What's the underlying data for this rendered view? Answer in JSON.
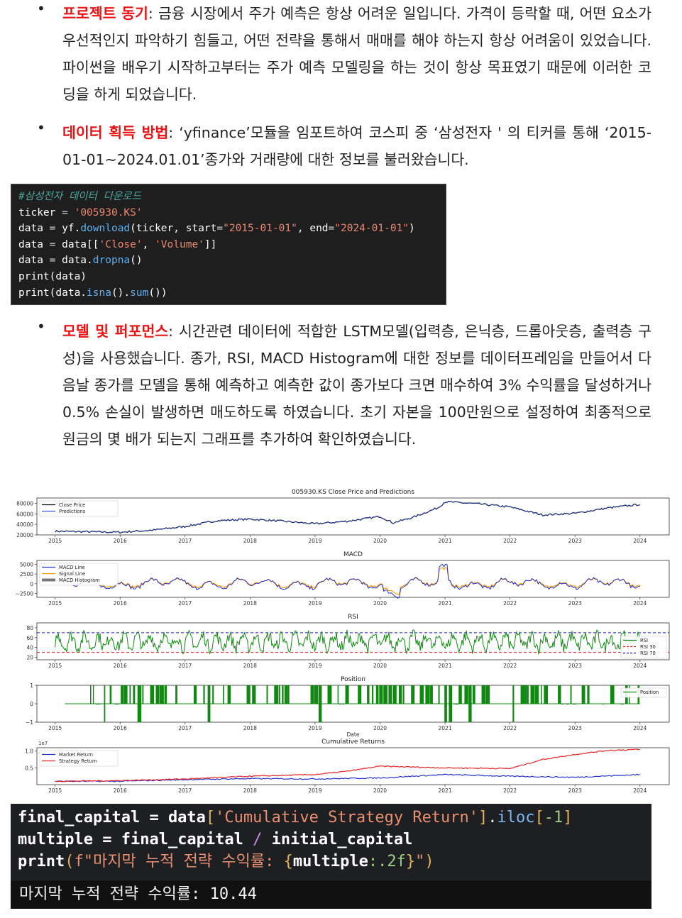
{
  "bullets": [
    {
      "heading": "프로젝트 동기",
      "text": ": 금융 시장에서 주가 예측은 항상 어려운 일입니다. 가격이 등락할 때, 어떤 요소가 우선적인지 파악하기 힘들고, 어떤 전략을 통해서 매매를 해야 하는지 항상 어려움이 있었습니다. 파이썬을 배우기 시작하고부터는 주가 예측 모델링을 하는 것이 항상 목표였기 때문에 이러한 코딩을 하게 되었습니다."
    },
    {
      "heading": "데이터 획득 방법",
      "text": ": ‘yfinance’모듈을 임포트하여 코스피 중 ‘삼성전자 ' 의 티커를 통해 ‘2015-01-01~2024.01.01’종가와 거래량에 대한 정보를 불러왔습니다."
    },
    {
      "heading": "모델 및 퍼포먼스",
      "text": ": 시간관련 데이터에 적합한 LSTM모델(입력층, 은닉층, 드롭아웃층, 출력층 구성)을 사용했습니다. 종가, RSI, MACD Histogram에 대한 정보를 데이터프레임을 만들어서 다음날 종가를 모델을 통해 예측하고 예측한 값이 종가보다 크면 매수하여 3% 수익률을 달성하거나 0.5% 손실이 발생하면 매도하도록 하였습니다. 초기 자본을 100만원으로 설정하여 최종적으로 원금의 몇 배가 되는지 그래프를 추가하여 확인하였습니다."
    }
  ],
  "code_block_1": {
    "comment": "#삼성전자 데이터 다운로드",
    "ticker_var": "ticker",
    "ticker_value": "'005930.KS'",
    "download_start": "\"2015-01-01\"",
    "download_end": "\"2024-01-01\"",
    "col_close": "'Close'",
    "col_volume": "'Volume'"
  },
  "chart_data": [
    {
      "type": "line",
      "title": "005930.KS Close Price and Predictions",
      "x_ticks": [
        "2015",
        "2016",
        "2017",
        "2018",
        "2019",
        "2020",
        "2021",
        "2022",
        "2023",
        "2024"
      ],
      "y_ticks": [
        "80000",
        "60000",
        "40000",
        "20000"
      ],
      "ylim": [
        20000,
        90000
      ],
      "legend": [
        "Close Price",
        "Predictions"
      ],
      "legend_position": "top-left",
      "colors": {
        "Close Price": "#000000",
        "Predictions": "#3355ee"
      },
      "series": [
        {
          "name": "Close Price",
          "x": [
            2015,
            2015.5,
            2016,
            2016.5,
            2017,
            2017.5,
            2018,
            2018.5,
            2019,
            2019.5,
            2020,
            2020.2,
            2020.5,
            2020.9,
            2021,
            2021.5,
            2022,
            2022.5,
            2023,
            2023.5,
            2024
          ],
          "values": [
            27000,
            26000,
            25000,
            29000,
            36000,
            47000,
            50000,
            46000,
            41000,
            46000,
            55000,
            43000,
            53000,
            72000,
            83000,
            79000,
            73000,
            58000,
            61000,
            71000,
            78000
          ]
        }
      ]
    },
    {
      "type": "line",
      "title": "MACD",
      "x_ticks": [
        "2015",
        "2016",
        "2017",
        "2018",
        "2019",
        "2020",
        "2021",
        "2022",
        "2023",
        "2024"
      ],
      "y_ticks": [
        "5000",
        "2500",
        "0",
        "−2500"
      ],
      "ylim": [
        -3500,
        6000
      ],
      "legend": [
        "MACD Line",
        "Signal Line",
        "MACD Histogram"
      ],
      "legend_position": "top-left",
      "colors": {
        "MACD Line": "#2233cc",
        "Signal Line": "#ff9900",
        "MACD Histogram": "#777777"
      }
    },
    {
      "type": "line",
      "title": "RSI",
      "x_ticks": [
        "2015",
        "2016",
        "2017",
        "2018",
        "2019",
        "2020",
        "2021",
        "2022",
        "2023",
        "2024"
      ],
      "y_ticks": [
        "80",
        "60",
        "40",
        "20"
      ],
      "ylim": [
        15,
        90
      ],
      "legend": [
        "RSI",
        "RSI 30",
        "RSI 70"
      ],
      "legend_position": "right",
      "colors": {
        "RSI": "#118811",
        "RSI 30": "#dd2222",
        "RSI 70": "#2222cc"
      }
    },
    {
      "type": "line",
      "title": "Position",
      "xlabel": "Date",
      "x_ticks": [
        "2015",
        "2016",
        "2017",
        "2018",
        "2019",
        "2020",
        "2021",
        "2022",
        "2023",
        "2024"
      ],
      "y_ticks": [
        "1",
        "0",
        "−1"
      ],
      "ylim": [
        -1,
        1
      ],
      "legend": [
        "Position"
      ],
      "legend_position": "top-right",
      "colors": {
        "Position": "#118811"
      }
    },
    {
      "type": "line",
      "title": "Cumulative Returns",
      "scale_label": "1e7",
      "x_ticks": [
        "2015",
        "2016",
        "2017",
        "2018",
        "2019",
        "2020",
        "2021",
        "2022",
        "2023",
        "2024"
      ],
      "y_ticks": [
        "1.0",
        "0.5"
      ],
      "ylim": [
        0,
        1.1
      ],
      "legend": [
        "Market Return",
        "Strategy Return"
      ],
      "legend_position": "top-left",
      "colors": {
        "Market Return": "#2233cc",
        "Strategy Return": "#ee2222"
      },
      "series": [
        {
          "name": "Market Return",
          "x": [
            2015,
            2016,
            2017,
            2018,
            2019,
            2020,
            2021,
            2022,
            2023,
            2024
          ],
          "values": [
            0.1,
            0.1,
            0.15,
            0.18,
            0.17,
            0.2,
            0.3,
            0.25,
            0.22,
            0.3
          ]
        },
        {
          "name": "Strategy Return",
          "x": [
            2015,
            2016,
            2017,
            2018,
            2019,
            2019.5,
            2020,
            2021,
            2022,
            2022.5,
            2023,
            2023.5,
            2024
          ],
          "values": [
            0.1,
            0.12,
            0.17,
            0.25,
            0.3,
            0.4,
            0.55,
            0.5,
            0.48,
            0.75,
            0.9,
            1.02,
            1.05
          ]
        }
      ]
    }
  ],
  "code_block_2": {
    "line1_var": "final_capital",
    "line1_key": "'Cumulative Strategy Return'",
    "line1_iloc": "iloc",
    "line1_idx": "-1",
    "line2_var": "multiple",
    "line2_a": "final_capital",
    "line2_b": "initial_capital",
    "line3_fstr": "f\"마지막 누적 전략 수익률: ",
    "line3_expr": "multiple",
    "line3_fmt": ":.2f",
    "line3_end": "\"",
    "output": "마지막 누적 전략 수익률: 10.44"
  }
}
